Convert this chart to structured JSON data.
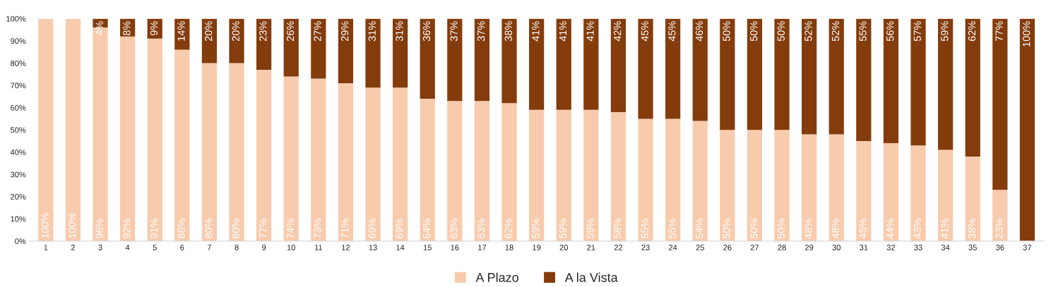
{
  "chart_data": {
    "type": "bar",
    "stacked": true,
    "categories": [
      "1",
      "2",
      "3",
      "4",
      "5",
      "6",
      "7",
      "8",
      "9",
      "10",
      "11",
      "12",
      "13",
      "14",
      "15",
      "16",
      "17",
      "18",
      "19",
      "20",
      "21",
      "22",
      "23",
      "24",
      "25",
      "26",
      "27",
      "28",
      "29",
      "30",
      "31",
      "32",
      "33",
      "34",
      "35",
      "36",
      "37"
    ],
    "series": [
      {
        "name": "A Plazo",
        "color": "#f8cbad",
        "values": [
          100,
          100,
          96,
          92,
          91,
          86,
          80,
          80,
          77,
          74,
          73,
          71,
          69,
          69,
          64,
          63,
          63,
          62,
          59,
          59,
          59,
          58,
          55,
          55,
          54,
          50,
          50,
          50,
          48,
          48,
          45,
          44,
          43,
          41,
          38,
          23,
          0
        ],
        "value_labels": [
          "100%",
          "100%",
          "96%",
          "92%",
          "91%",
          "86%",
          "80%",
          "80%",
          "77%",
          "74%",
          "73%",
          "71%",
          "69%",
          "69%",
          "64%",
          "63%",
          "63%",
          "62%",
          "59%",
          "59%",
          "59%",
          "58%",
          "55%",
          "55%",
          "54%",
          "50%",
          "50%",
          "50%",
          "48%",
          "48%",
          "45%",
          "44%",
          "43%",
          "41%",
          "38%",
          "23%",
          null
        ]
      },
      {
        "name": "A la Vista",
        "color": "#843c0c",
        "values": [
          0,
          0,
          4,
          8,
          9,
          14,
          20,
          20,
          23,
          26,
          27,
          29,
          31,
          31,
          36,
          37,
          37,
          38,
          41,
          41,
          41,
          42,
          45,
          45,
          46,
          50,
          50,
          50,
          52,
          52,
          55,
          56,
          57,
          59,
          62,
          77,
          100
        ],
        "value_labels": [
          null,
          null,
          "4%",
          "8%",
          "9%",
          "14%",
          "20%",
          "20%",
          "23%",
          "26%",
          "27%",
          "29%",
          "31%",
          "31%",
          "36%",
          "37%",
          "37%",
          "38%",
          "41%",
          "41%",
          "41%",
          "42%",
          "45%",
          "45%",
          "46%",
          "50%",
          "50%",
          "50%",
          "52%",
          "52%",
          "55%",
          "56%",
          "57%",
          "59%",
          "62%",
          "77%",
          "100%"
        ]
      }
    ],
    "ylim": [
      0,
      100
    ],
    "yticks": [
      {
        "value": 0,
        "label": "0%"
      },
      {
        "value": 10,
        "label": "10%"
      },
      {
        "value": 20,
        "label": "20%"
      },
      {
        "value": 30,
        "label": "30%"
      },
      {
        "value": 40,
        "label": "40%"
      },
      {
        "value": 50,
        "label": "50%"
      },
      {
        "value": 60,
        "label": "60%"
      },
      {
        "value": 70,
        "label": "70%"
      },
      {
        "value": 80,
        "label": "80%"
      },
      {
        "value": 90,
        "label": "90%"
      },
      {
        "value": 100,
        "label": "100%"
      }
    ],
    "grid": false,
    "legend": "bottom"
  }
}
